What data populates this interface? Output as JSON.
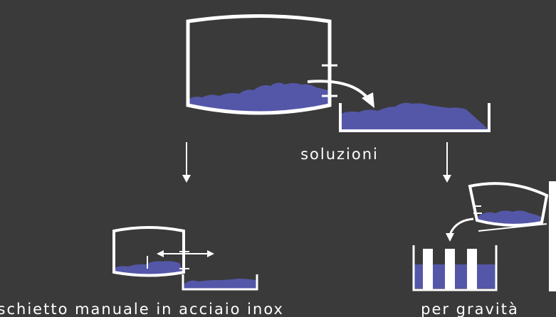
{
  "labels": {
    "solutions": "soluzioni",
    "manual": "raschietto manuale in acciaio inox",
    "gravity": "per gravità"
  }
}
